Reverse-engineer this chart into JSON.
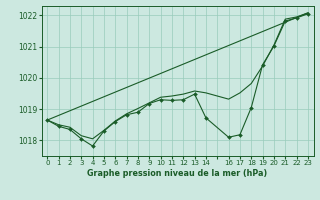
{
  "title": "Graphe pression niveau de la mer (hPa)",
  "background_color": "#cce8e0",
  "grid_color": "#99ccbb",
  "line_color": "#1a5c28",
  "ylim": [
    1017.5,
    1022.3
  ],
  "yticks": [
    1018,
    1019,
    1020,
    1021,
    1022
  ],
  "xlim": [
    -0.5,
    23.5
  ],
  "xticks": [
    0,
    1,
    2,
    3,
    4,
    5,
    6,
    7,
    8,
    9,
    10,
    11,
    12,
    13,
    14,
    15,
    16,
    17,
    18,
    19,
    20,
    21,
    22,
    23
  ],
  "xtick_labels": [
    "0",
    "1",
    "2",
    "3",
    "4",
    "5",
    "6",
    "7",
    "8",
    "9",
    "10",
    "11",
    "12",
    "13",
    "14",
    "",
    "16",
    "17",
    "18",
    "19",
    "20",
    "21",
    "22",
    "23"
  ],
  "series1_x": [
    0,
    1,
    2,
    3,
    4,
    5,
    6,
    7,
    8,
    9,
    10,
    11,
    12,
    13,
    14,
    16,
    17,
    18,
    19,
    20,
    21,
    22,
    23
  ],
  "series1_y": [
    1018.65,
    1018.45,
    1018.35,
    1018.05,
    1017.82,
    1018.3,
    1018.6,
    1018.82,
    1018.9,
    1019.18,
    1019.3,
    1019.28,
    1019.3,
    1019.48,
    1018.72,
    1018.1,
    1018.18,
    1019.05,
    1020.42,
    1021.02,
    1021.82,
    1021.92,
    1022.05
  ],
  "series2_x": [
    0,
    1,
    2,
    3,
    4,
    5,
    6,
    7,
    8,
    9,
    10,
    11,
    12,
    13,
    14,
    16,
    17,
    18,
    19,
    20,
    21,
    22,
    23
  ],
  "series2_y": [
    1018.65,
    1018.5,
    1018.42,
    1018.15,
    1018.05,
    1018.32,
    1018.62,
    1018.85,
    1019.02,
    1019.2,
    1019.38,
    1019.42,
    1019.48,
    1019.58,
    1019.52,
    1019.32,
    1019.52,
    1019.82,
    1020.38,
    1021.05,
    1021.88,
    1021.95,
    1022.08
  ],
  "series3_x": [
    0,
    23
  ],
  "series3_y": [
    1018.65,
    1022.08
  ]
}
